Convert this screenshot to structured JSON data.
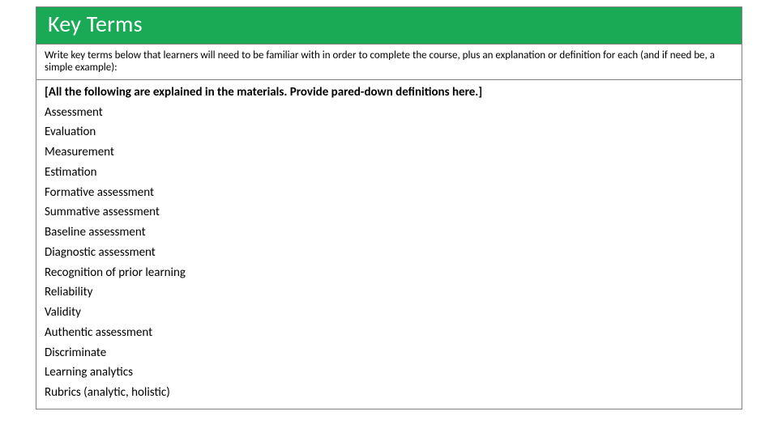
{
  "header": {
    "title": "Key Terms"
  },
  "instruction": "Write key terms below that learners will need to be familiar with in order to complete the course, plus an explanation or definition for each (and if need be, a simple example):",
  "note": "[All the following are explained in the materials. Provide pared-down definitions here.]",
  "terms": [
    "Assessment",
    "Evaluation",
    "Measurement",
    "Estimation",
    "Formative assessment",
    "Summative assessment",
    "Baseline assessment",
    "Diagnostic assessment",
    "Recognition of prior learning",
    "Reliability",
    "Validity",
    "Authentic assessment",
    "Discriminate",
    "Learning analytics",
    "Rubrics (analytic, holistic)"
  ],
  "colors": {
    "header_bg": "#1aaa55",
    "header_text": "#ffffff",
    "border": "#808080",
    "body_text": "#000000",
    "page_bg": "#ffffff"
  }
}
